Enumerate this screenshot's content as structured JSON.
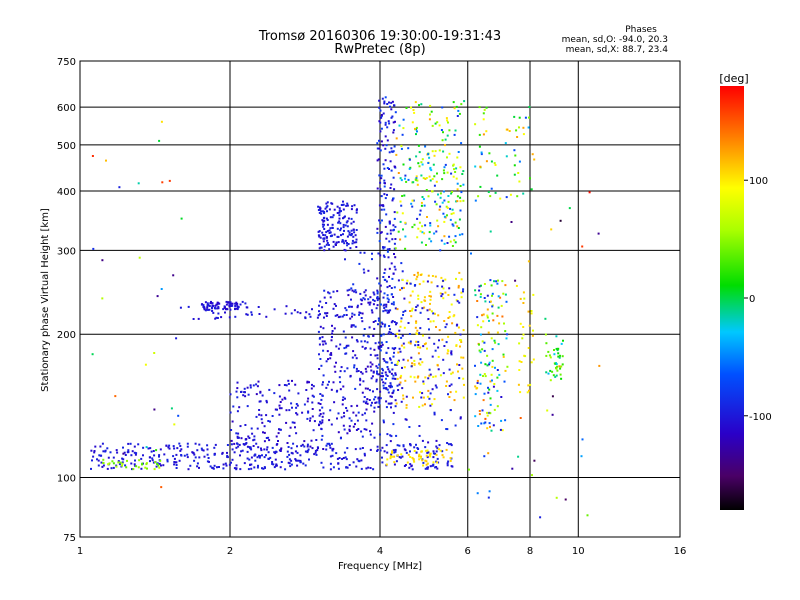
{
  "chart_data": {
    "type": "scatter",
    "title": "Tromsø 20160306 19:30:00-19:31:43",
    "subtitle": "RwPretec (8p)",
    "xlabel": "Frequency [MHz]",
    "ylabel": "Stationary phase Virtual Height [km]",
    "x_scale": "log",
    "y_scale": "log",
    "xlim": [
      1,
      16
    ],
    "ylim": [
      75,
      750
    ],
    "grid": true,
    "x_ticks": [
      {
        "value": 1,
        "label": "1"
      },
      {
        "value": 2,
        "label": "2"
      },
      {
        "value": 4,
        "label": "4"
      },
      {
        "value": 6,
        "label": "6"
      },
      {
        "value": 8,
        "label": "8"
      },
      {
        "value": 10,
        "label": "10"
      },
      {
        "value": 16,
        "label": "16"
      }
    ],
    "y_ticks": [
      {
        "value": 75,
        "label": "75"
      },
      {
        "value": 100,
        "label": "100"
      },
      {
        "value": 200,
        "label": "200"
      },
      {
        "value": 300,
        "label": "300"
      },
      {
        "value": 400,
        "label": "400"
      },
      {
        "value": 500,
        "label": "500"
      },
      {
        "value": 600,
        "label": "600"
      },
      {
        "value": 750,
        "label": "750"
      }
    ],
    "stats": {
      "heading": "Phases",
      "o_line": "mean, sd,O: -94.0, 20.3",
      "x_line": "mean, sd,X:  88.7, 23.4"
    },
    "colorbar": {
      "label": "[deg]",
      "range": [
        -180,
        180
      ],
      "ticks": [
        {
          "value": 100,
          "label": "100"
        },
        {
          "value": 0,
          "label": "0"
        },
        {
          "value": -100,
          "label": "-100"
        }
      ]
    },
    "clusters": [
      {
        "name": "low-trace",
        "x": [
          1.05,
          5.6
        ],
        "y": [
          104,
          118
        ],
        "phase": [
          -110,
          -90
        ],
        "count": 420
      },
      {
        "name": "low-trace-yellow",
        "x": [
          4.1,
          5.6
        ],
        "y": [
          106,
          115
        ],
        "phase": [
          90,
          115
        ],
        "count": 50
      },
      {
        "name": "green-start",
        "x": [
          1.1,
          1.45
        ],
        "y": [
          104,
          109
        ],
        "phase": [
          30,
          70
        ],
        "count": 30
      },
      {
        "name": "ramp-1",
        "x": [
          2.0,
          3.1
        ],
        "y": [
          112,
          160
        ],
        "phase": [
          -120,
          -90
        ],
        "count": 170
      },
      {
        "name": "ramp-2",
        "x": [
          3.0,
          4.0
        ],
        "y": [
          120,
          250
        ],
        "phase": [
          -120,
          -85
        ],
        "count": 260
      },
      {
        "name": "ramp-3",
        "x": [
          3.4,
          4.5
        ],
        "y": [
          150,
          300
        ],
        "phase": [
          -115,
          -80
        ],
        "count": 90
      },
      {
        "name": "flat-230",
        "x": [
          1.75,
          2.15
        ],
        "y": [
          225,
          234
        ],
        "phase": [
          -115,
          -95
        ],
        "count": 70
      },
      {
        "name": "flat-220",
        "x": [
          1.5,
          3.3
        ],
        "y": [
          215,
          230
        ],
        "phase": [
          -110,
          -95
        ],
        "count": 50
      },
      {
        "name": "blob-330",
        "x": [
          3.0,
          3.6
        ],
        "y": [
          300,
          380
        ],
        "phase": [
          -110,
          -90
        ],
        "count": 160
      },
      {
        "name": "spike-4",
        "x": [
          3.95,
          4.3
        ],
        "y": [
          140,
          640
        ],
        "phase": [
          -120,
          -70
        ],
        "count": 230
      },
      {
        "name": "upper-mixed",
        "x": [
          4.3,
          5.9
        ],
        "y": [
          300,
          620
        ],
        "phase": [
          -100,
          130
        ],
        "count": 240
      },
      {
        "name": "mid-yellow",
        "x": [
          4.3,
          5.9
        ],
        "y": [
          140,
          270
        ],
        "phase": [
          80,
          130
        ],
        "count": 170
      },
      {
        "name": "mid-blue",
        "x": [
          4.0,
          5.9
        ],
        "y": [
          118,
          260
        ],
        "phase": [
          -115,
          -80
        ],
        "count": 140
      },
      {
        "name": "col-6.6",
        "x": [
          6.2,
          7.2
        ],
        "y": [
          125,
          260
        ],
        "phase": [
          -120,
          140
        ],
        "count": 130
      },
      {
        "name": "col-7.8",
        "x": [
          7.6,
          8.2
        ],
        "y": [
          150,
          250
        ],
        "phase": [
          70,
          120
        ],
        "count": 30
      },
      {
        "name": "col-8.9",
        "x": [
          8.6,
          9.4
        ],
        "y": [
          160,
          200
        ],
        "phase": [
          -40,
          60
        ],
        "count": 40
      },
      {
        "name": "upper-6-8",
        "x": [
          6.2,
          8.3
        ],
        "y": [
          380,
          620
        ],
        "phase": [
          -80,
          140
        ],
        "count": 60
      },
      {
        "name": "sparse-left",
        "x": [
          1.05,
          1.6
        ],
        "y": [
          80,
          640
        ],
        "phase": [
          -140,
          170
        ],
        "count": 30
      },
      {
        "name": "sparse-right",
        "x": [
          6.0,
          12.0
        ],
        "y": [
          80,
          400
        ],
        "phase": [
          -170,
          175
        ],
        "count": 40
      }
    ]
  }
}
